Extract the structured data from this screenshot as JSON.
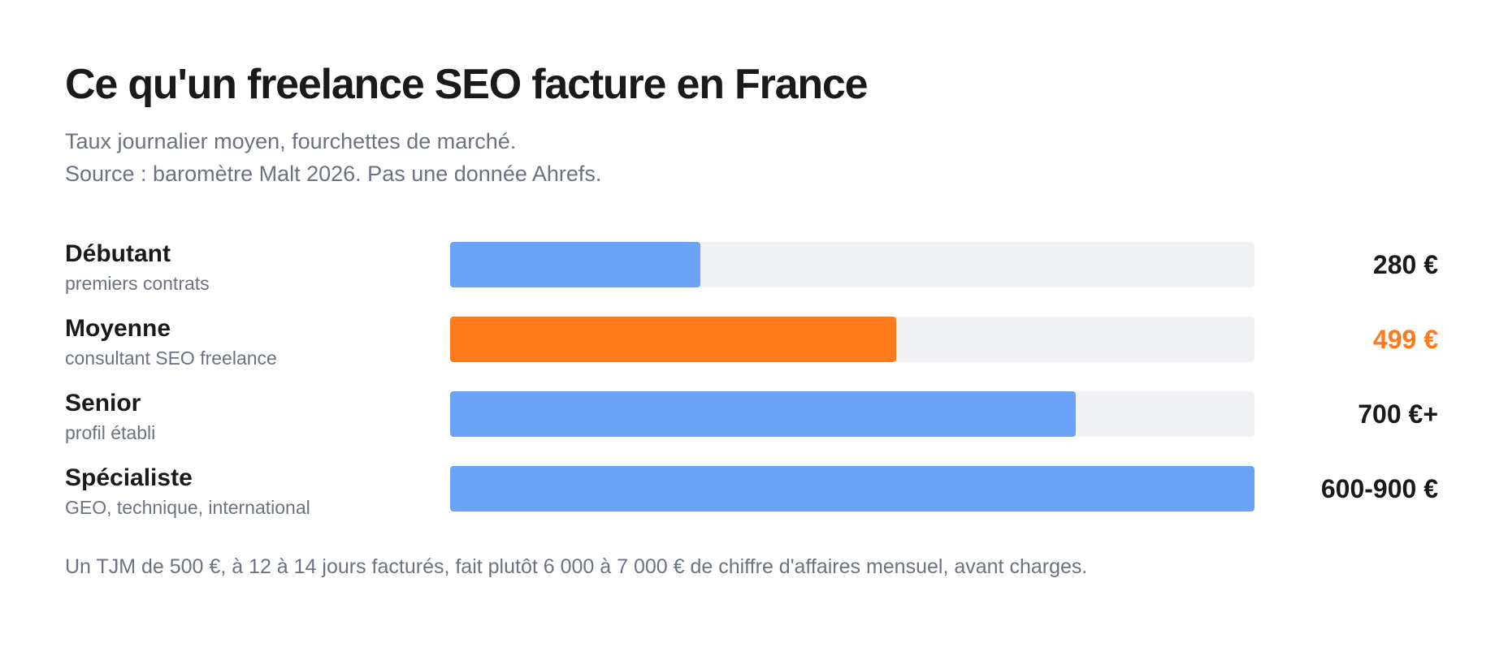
{
  "title": "Ce qu'un freelance SEO facture en France",
  "subtitle_line1": "Taux journalier moyen, fourchettes de marché.",
  "subtitle_line2": "Source : baromètre Malt 2026. Pas une donnée Ahrefs.",
  "footnote": "Un TJM de 500 €, à 12 à 14 jours facturés, fait plutôt 6 000 à 7 000 € de chiffre d'affaires mensuel, avant charges.",
  "colors": {
    "default_bar": "#6aa3f7",
    "highlight_bar": "#ff7a1a",
    "track": "#f0f1f4",
    "text": "#1a1a1a",
    "muted": "#6b7280"
  },
  "chart_data": {
    "type": "bar",
    "orientation": "horizontal",
    "title": "Ce qu'un freelance SEO facture en France",
    "xlim": [
      0,
      900
    ],
    "grid": false,
    "categories": [
      "Débutant",
      "Moyenne",
      "Senior",
      "Spécialiste"
    ],
    "sublabels": [
      "premiers contrats",
      "consultant SEO freelance",
      "profil établi",
      "GEO, technique, international"
    ],
    "values": [
      280,
      499,
      700,
      900
    ],
    "value_labels": [
      "280 €",
      "499 €",
      "700 €+",
      "600-900 €"
    ],
    "highlight": [
      false,
      true,
      false,
      false
    ]
  }
}
